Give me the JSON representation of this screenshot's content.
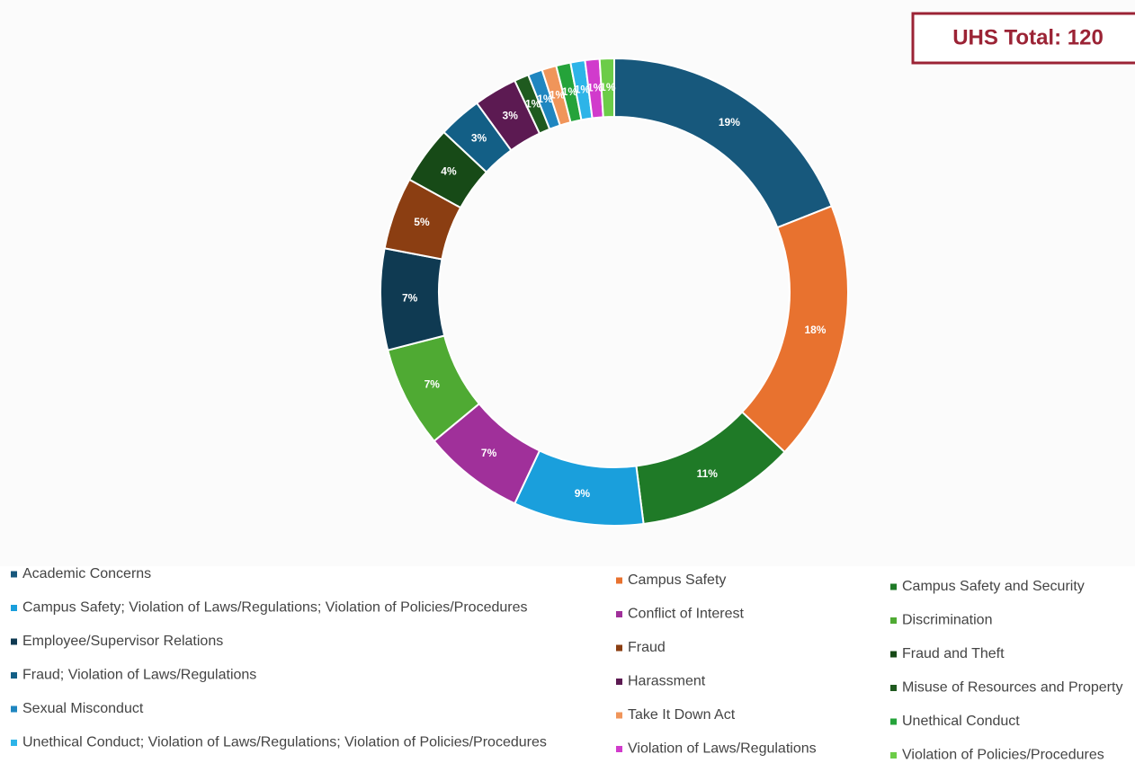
{
  "chart_data": {
    "type": "donut",
    "annotation": "UHS Total: 120",
    "series": [
      {
        "name": "Academic Concerns",
        "color": "#17587c",
        "values": [
          19
        ],
        "value_labels": [
          "19%"
        ]
      },
      {
        "name": "Campus Safety",
        "color": "#e8722f",
        "values": [
          18
        ],
        "value_labels": [
          "18%"
        ]
      },
      {
        "name": "Campus Safety and Security",
        "color": "#1f7a27",
        "values": [
          11
        ],
        "value_labels": [
          "11%"
        ]
      },
      {
        "name": "Campus Safety; Violation of Laws/Regulations; Violation of Policies/Procedures",
        "color": "#1a9fdc",
        "values": [
          9
        ],
        "value_labels": [
          "9%"
        ]
      },
      {
        "name": "Conflict of Interest",
        "color": "#a0309a",
        "values": [
          7
        ],
        "value_labels": [
          "7%"
        ]
      },
      {
        "name": "Discrimination",
        "color": "#4faa33",
        "values": [
          7
        ],
        "value_labels": [
          "7%"
        ]
      },
      {
        "name": "Employee/Supervisor Relations",
        "color": "#0f3a52",
        "values": [
          7
        ],
        "value_labels": [
          "7%"
        ]
      },
      {
        "name": "Fraud",
        "color": "#8b3e12",
        "values": [
          5
        ],
        "value_labels": [
          "5%"
        ]
      },
      {
        "name": "Fraud and Theft",
        "color": "#174a17",
        "values": [
          4
        ],
        "value_labels": [
          "4%"
        ]
      },
      {
        "name": "Fraud; Violation of Laws/Regulations",
        "color": "#135f86",
        "values": [
          3
        ],
        "value_labels": [
          "3%"
        ]
      },
      {
        "name": "Harassment",
        "color": "#5c1a52",
        "values": [
          3
        ],
        "value_labels": [
          "3%"
        ]
      },
      {
        "name": "Misuse of Resources and Property",
        "color": "#1f5a1f",
        "values": [
          1
        ],
        "value_labels": [
          "1%"
        ]
      },
      {
        "name": "Sexual Misconduct",
        "color": "#1f86c0",
        "values": [
          1
        ],
        "value_labels": [
          "1%"
        ]
      },
      {
        "name": "Take It Down Act",
        "color": "#f0955a",
        "values": [
          1
        ],
        "value_labels": [
          "1%"
        ]
      },
      {
        "name": "Unethical Conduct",
        "color": "#25a33a",
        "values": [
          1
        ],
        "value_labels": [
          "1%"
        ]
      },
      {
        "name": "Unethical Conduct; Violation of Laws/Regulations; Violation of Policies/Procedures",
        "color": "#2db4e8",
        "values": [
          1
        ],
        "value_labels": [
          "1%"
        ]
      },
      {
        "name": "Violation of Laws/Regulations",
        "color": "#d13bcc",
        "values": [
          1
        ],
        "value_labels": [
          "1%"
        ]
      },
      {
        "name": "Violation of Policies/Procedures",
        "color": "#6ccc48",
        "values": [
          1
        ],
        "value_labels": [
          "1%"
        ]
      }
    ]
  }
}
